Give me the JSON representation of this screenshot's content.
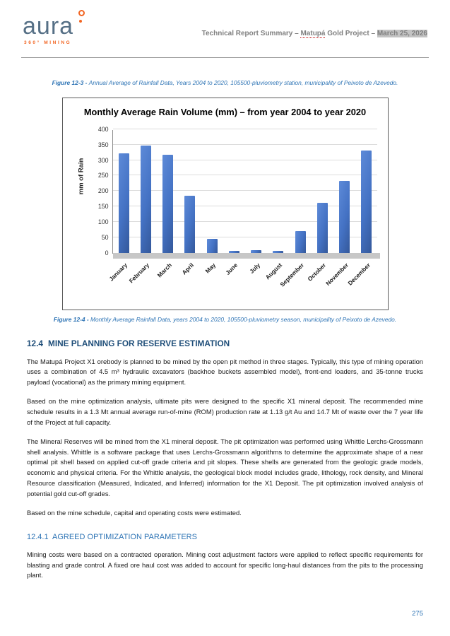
{
  "header": {
    "logo_text": "aura",
    "logo_sub": "360° MINING",
    "title_part1": "Technical Report Summary – ",
    "title_matupa": "Matupá",
    "title_part2": " Gold Project – ",
    "title_date": "March 25, 2026"
  },
  "figures": {
    "fig3": {
      "label": "Figure 12-3 - ",
      "text": "Annual Average of Rainfall Data, Years 2004 to 2020, 105500-pluviometry station, municipality of Peixoto de Azevedo."
    },
    "fig4": {
      "label": "Figure 12-4 - ",
      "text": "Monthly Average Rainfall Data, years 2004 to 2020, 105500-pluviometry season, municipality of Peixoto de Azevedo."
    }
  },
  "chart_data": {
    "type": "bar",
    "title": "Monthly Average Rain Volume (mm) – from year 2004 to year 2020",
    "xlabel": "",
    "ylabel": "mm of Rain",
    "ylim": [
      0,
      400
    ],
    "ytick_step": 50,
    "grid": true,
    "legend": "none",
    "bar_color": "#4472C4",
    "categories": [
      "January",
      "February",
      "March",
      "April",
      "May",
      "June",
      "July",
      "August",
      "September",
      "October",
      "November",
      "December"
    ],
    "values": [
      322,
      348,
      318,
      184,
      45,
      6,
      8,
      6,
      70,
      161,
      232,
      331
    ]
  },
  "section": {
    "number": "12.4",
    "title": "MINE PLANNING FOR RESERVE ESTIMATION",
    "paragraphs": [
      "The Matupá Project X1 orebody is planned to be mined by the open pit method in three stages. Typically, this type of mining operation uses a combination of 4.5 m³ hydraulic excavators (backhoe buckets assembled model), front-end loaders, and 35-tonne trucks payload (vocational) as the primary mining equipment.",
      "Based on the mine optimization analysis, ultimate pits were designed to the specific X1 mineral deposit. The recommended mine schedule results in a 1.3 Mt annual average run-of-mine (ROM) production rate at 1.13 g/t  Au and 14.7 Mt of waste over the 7 year life of the Project at full capacity.",
      "The Mineral Reserves will be mined from the X1 mineral deposit. The pit optimization was performed using Whittle Lerchs-Grossmann shell analysis. Whittle is a software package that uses Lerchs-Grossmann algorithms to determine the approximate shape of a near optimal pit shell based on applied cut-off grade criteria and pit slopes. These shells are generated from the geologic grade models, economic and physical criteria. For the Whittle analysis, the geological block model includes grade, lithology, rock density, and Mineral Resource classification (Measured, Indicated, and Inferred) information for the X1 Deposit. The pit optimization involved analysis of potential gold cut-off grades.",
      "Based on the mine schedule, capital and operating costs were estimated."
    ],
    "sub_number": "12.4.1",
    "sub_title": "AGREED OPTIMIZATION PARAMETERS",
    "sub_paragraph": "Mining costs were based on a contracted operation. Mining cost adjustment factors were applied to reflect specific requirements for blasting and grade control. A fixed ore haul cost was added to account for specific long-haul distances from the pits to the processing plant."
  },
  "footer": {
    "page_number": "275"
  }
}
